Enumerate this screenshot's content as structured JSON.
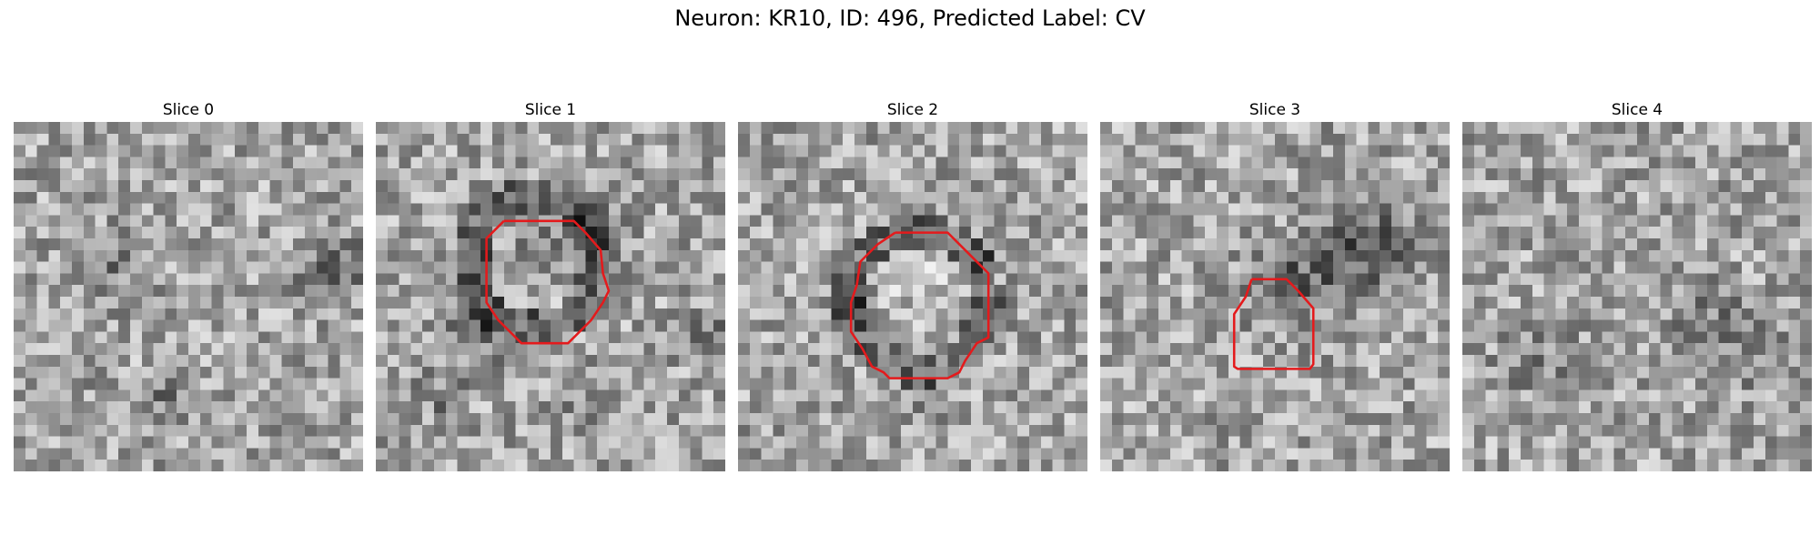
{
  "figure": {
    "title": "Neuron: KR10, ID: 496, Predicted Label: CV"
  },
  "slices": [
    {
      "label": "Slice 0",
      "has_contour": false,
      "seed": 11
    },
    {
      "label": "Slice 1",
      "has_contour": true,
      "seed": 23
    },
    {
      "label": "Slice 2",
      "has_contour": true,
      "seed": 37
    },
    {
      "label": "Slice 3",
      "has_contour": true,
      "seed": 41
    },
    {
      "label": "Slice 4",
      "has_contour": false,
      "seed": 59
    }
  ],
  "colors": {
    "contour": "#e41a1c"
  }
}
